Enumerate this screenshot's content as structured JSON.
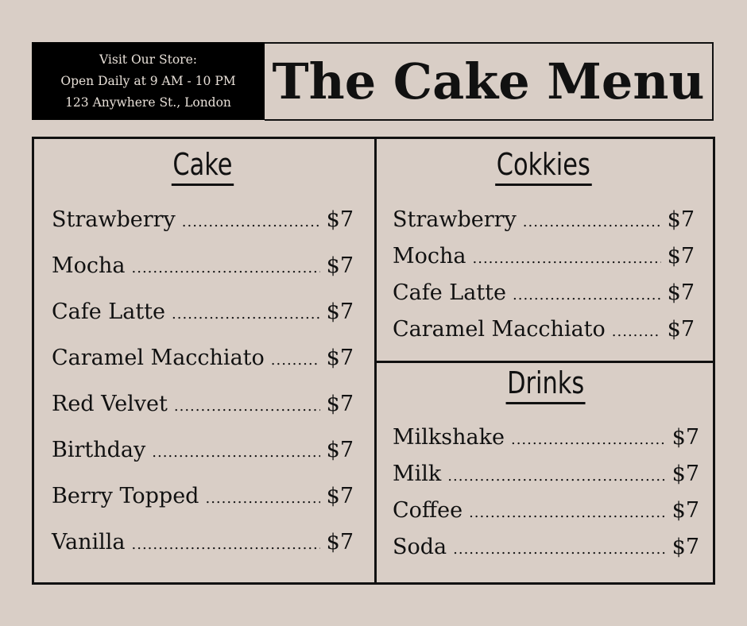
{
  "store": {
    "line1": "Visit Our Store:",
    "line2": "Open Daily at 9 AM - 10 PM",
    "line3": "123 Anywhere St., London"
  },
  "title": "The Cake Menu",
  "sections": [
    {
      "heading": "Cake",
      "items": [
        {
          "name": "Strawberry",
          "price": "$7"
        },
        {
          "name": "Mocha",
          "price": "$7"
        },
        {
          "name": "Cafe Latte",
          "price": "$7"
        },
        {
          "name": "Caramel Macchiato",
          "price": "$7"
        },
        {
          "name": "Red Velvet",
          "price": "$7"
        },
        {
          "name": "Birthday",
          "price": "$7"
        },
        {
          "name": "Berry Topped",
          "price": "$7"
        },
        {
          "name": "Vanilla",
          "price": "$7"
        }
      ]
    },
    {
      "heading": "Cokkies",
      "items": [
        {
          "name": "Strawberry",
          "price": "$7"
        },
        {
          "name": "Mocha",
          "price": "$7"
        },
        {
          "name": "Cafe Latte",
          "price": "$7"
        },
        {
          "name": "Caramel Macchiato",
          "price": "$7"
        }
      ]
    },
    {
      "heading": "Drinks",
      "items": [
        {
          "name": "Milkshake",
          "price": "$7"
        },
        {
          "name": "Milk",
          "price": "$7"
        },
        {
          "name": "Coffee",
          "price": "$7"
        },
        {
          "name": "Soda",
          "price": "$7"
        }
      ]
    }
  ]
}
